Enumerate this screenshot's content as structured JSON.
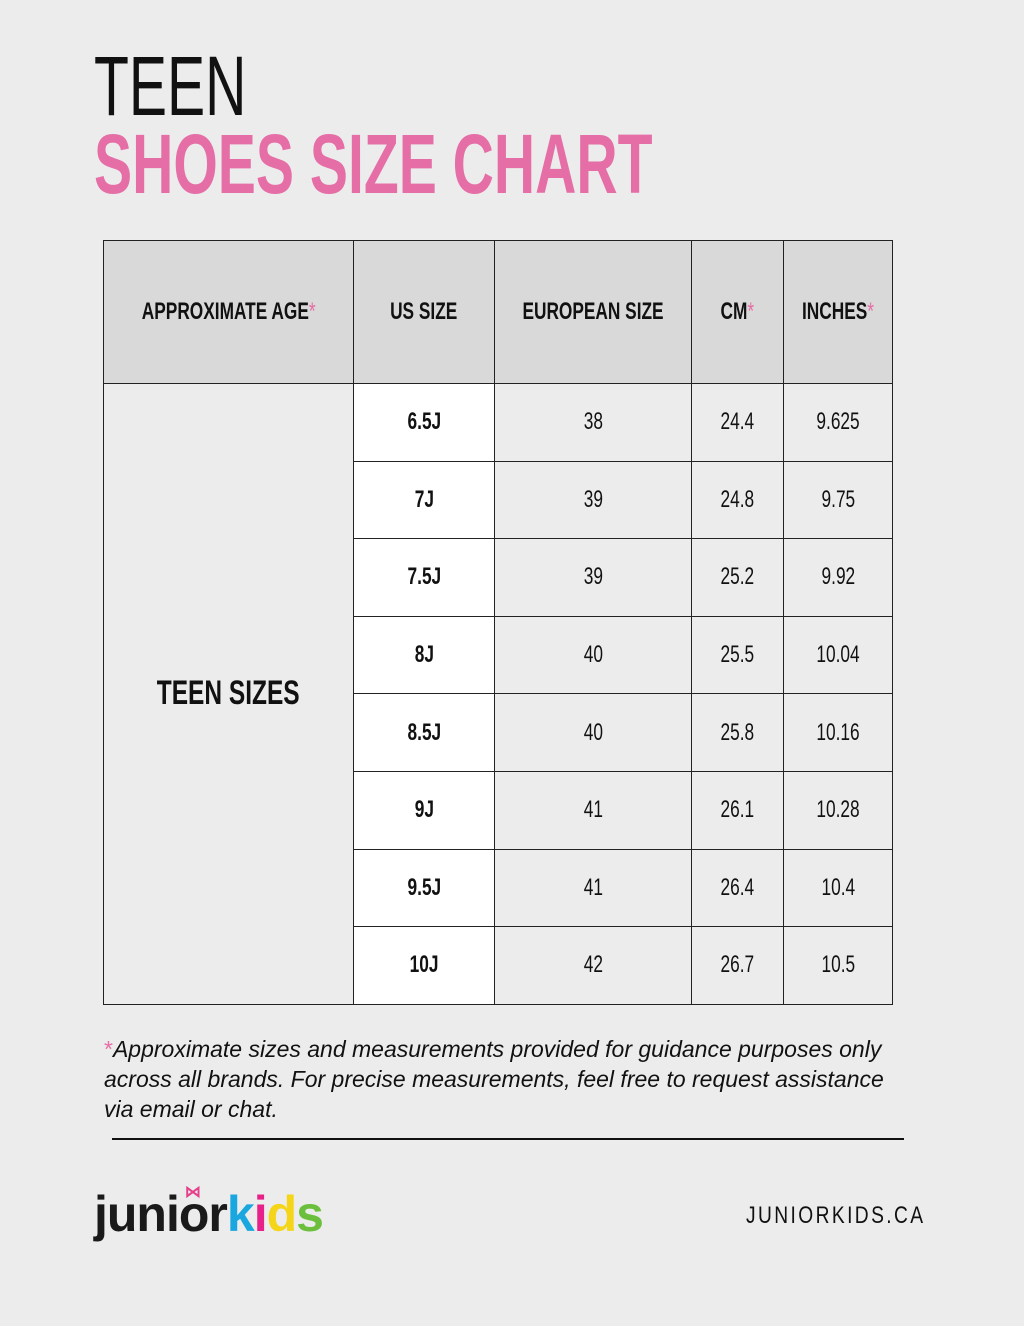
{
  "header": {
    "line1": "TEEN",
    "line2": "SHOES SIZE CHART"
  },
  "colors": {
    "accent": "#e56ea6",
    "header_bg": "#d9d9d9",
    "page_bg": "#ececec"
  },
  "table": {
    "columns": [
      "APPROXIMATE AGE",
      "US SIZE",
      "EUROPEAN SIZE",
      "CM",
      "INCHES"
    ],
    "asterisk": "*",
    "group_label": "TEEN SIZES",
    "rows": [
      {
        "us": "6.5J",
        "eu": "38",
        "cm": "24.4",
        "in": "9.625"
      },
      {
        "us": "7J",
        "eu": "39",
        "cm": "24.8",
        "in": "9.75"
      },
      {
        "us": "7.5J",
        "eu": "39",
        "cm": "25.2",
        "in": "9.92"
      },
      {
        "us": "8J",
        "eu": "40",
        "cm": "25.5",
        "in": "10.04"
      },
      {
        "us": "8.5J",
        "eu": "40",
        "cm": "25.8",
        "in": "10.16"
      },
      {
        "us": "9J",
        "eu": "41",
        "cm": "26.1",
        "in": "10.28"
      },
      {
        "us": "9.5J",
        "eu": "41",
        "cm": "26.4",
        "in": "10.4"
      },
      {
        "us": "10J",
        "eu": "42",
        "cm": "26.7",
        "in": "10.5"
      }
    ]
  },
  "footnote": {
    "marker": "*",
    "text": "Approximate sizes and measurements provided for guidance purposes only across all brands. For precise measurements, feel free to request assistance via email or chat."
  },
  "footer": {
    "logo": {
      "part1": "juni",
      "o": "o",
      "r": "r",
      "k": "k",
      "i": "i",
      "d": "d",
      "s": "s"
    },
    "website": "JUNIORKIDS.CA"
  }
}
